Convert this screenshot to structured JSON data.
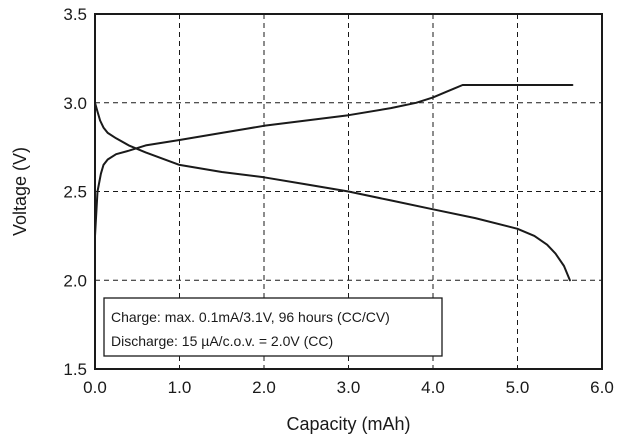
{
  "chart_data": {
    "type": "line",
    "title": "",
    "xlabel": "Capacity (mAh)",
    "ylabel": "Voltage (V)",
    "xlim": [
      0,
      6
    ],
    "ylim": [
      1.5,
      3.5
    ],
    "x_ticks": [
      "0.0",
      "1.0",
      "2.0",
      "3.0",
      "4.0",
      "5.0",
      "6.0"
    ],
    "y_ticks": [
      "1.5",
      "2.0",
      "2.5",
      "3.0",
      "3.5"
    ],
    "grid": "dashed",
    "legend": "none",
    "line_color": "#1a1a1a",
    "annotation": {
      "position": "bottom-left",
      "lines": [
        "Charge: max. 0.1mA/3.1V, 96 hours (CC/CV)",
        "Discharge: 15 µA/c.o.v. = 2.0V (CC)"
      ]
    },
    "series": [
      {
        "label": "charge",
        "x": [
          0.0,
          0.03,
          0.07,
          0.1,
          0.15,
          0.25,
          0.4,
          0.6,
          1.0,
          1.5,
          2.0,
          2.5,
          3.0,
          3.5,
          3.8,
          4.0,
          4.15,
          4.25,
          4.35,
          4.5,
          5.0,
          5.5,
          5.65
        ],
        "y": [
          2.25,
          2.5,
          2.6,
          2.65,
          2.68,
          2.71,
          2.73,
          2.76,
          2.79,
          2.83,
          2.87,
          2.9,
          2.93,
          2.97,
          3.0,
          3.03,
          3.06,
          3.08,
          3.1,
          3.1,
          3.1,
          3.1,
          3.1
        ]
      },
      {
        "label": "discharge",
        "x": [
          0.0,
          0.03,
          0.06,
          0.1,
          0.15,
          0.25,
          0.4,
          0.6,
          1.0,
          1.5,
          2.0,
          2.5,
          3.0,
          3.5,
          4.0,
          4.5,
          5.0,
          5.2,
          5.35,
          5.45,
          5.55,
          5.62
        ],
        "y": [
          3.0,
          2.95,
          2.9,
          2.86,
          2.83,
          2.8,
          2.76,
          2.72,
          2.65,
          2.61,
          2.58,
          2.54,
          2.5,
          2.45,
          2.4,
          2.35,
          2.29,
          2.25,
          2.2,
          2.15,
          2.08,
          2.0
        ]
      }
    ]
  }
}
